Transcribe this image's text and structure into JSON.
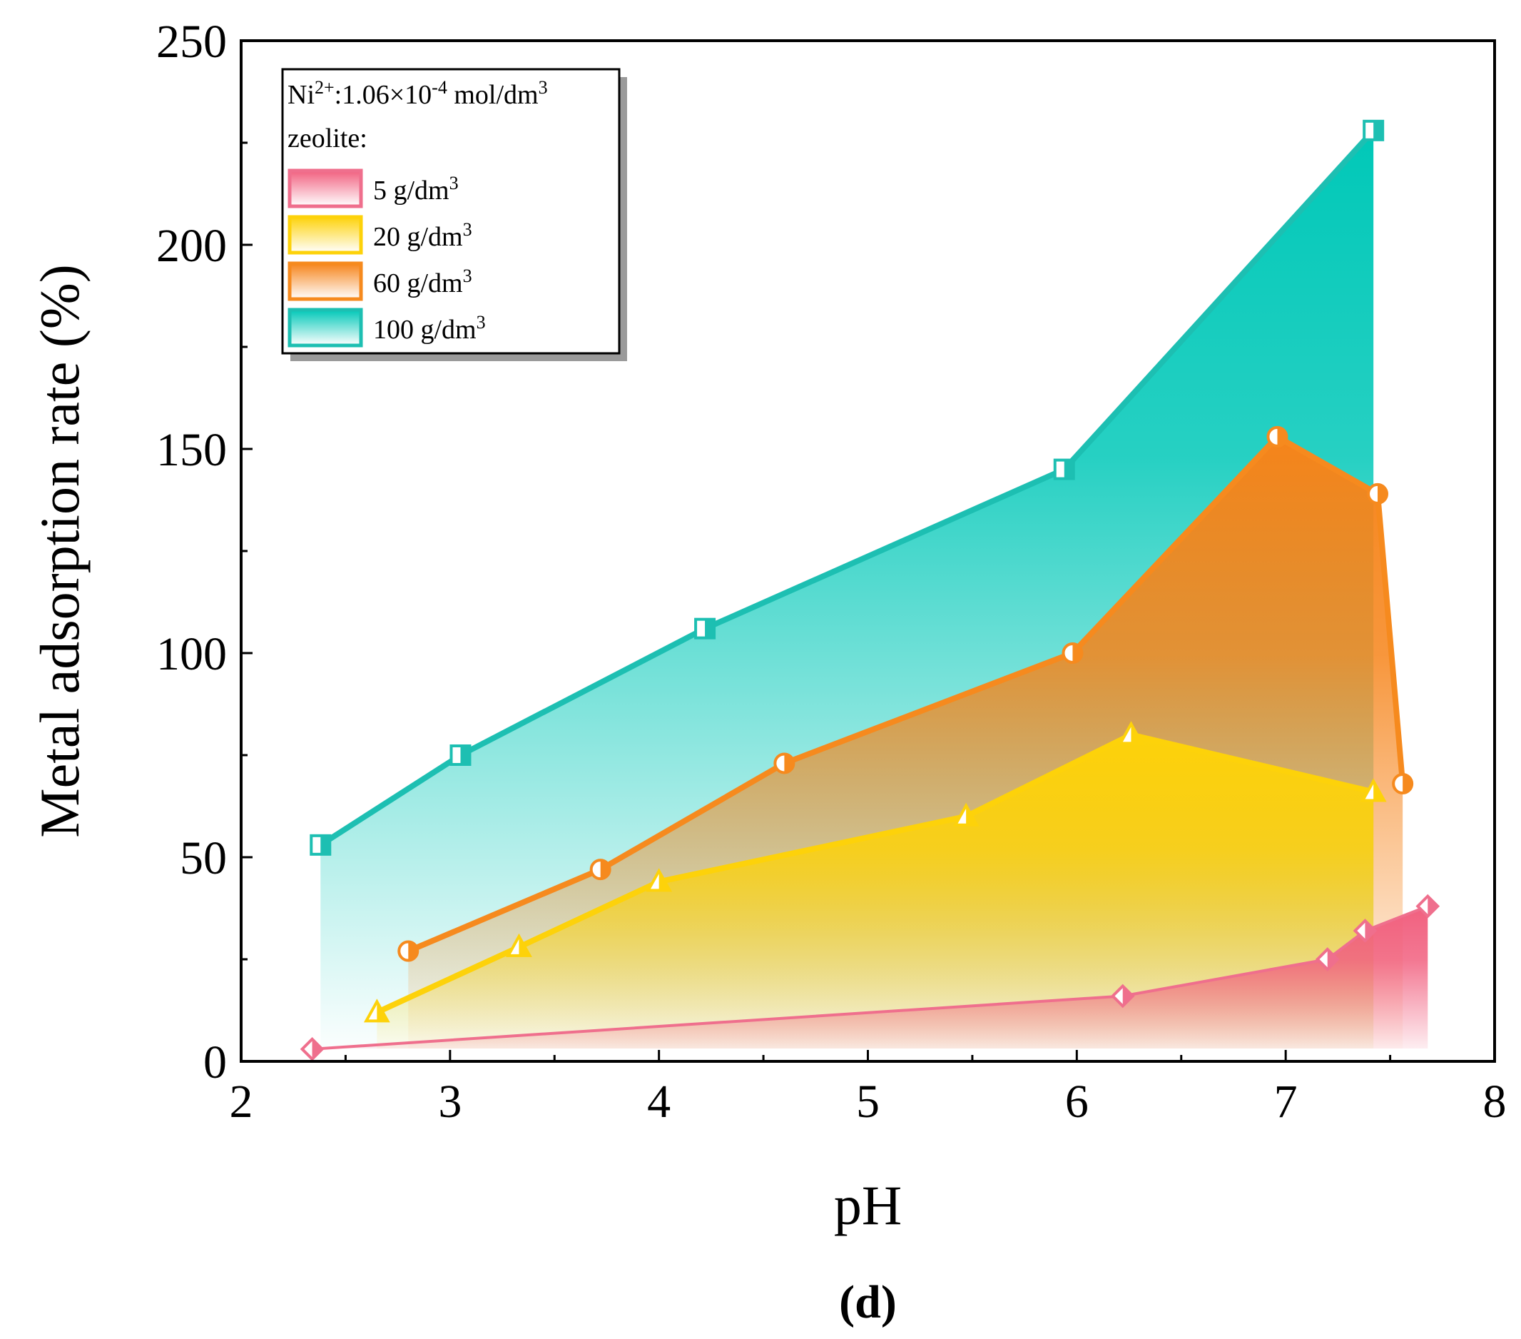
{
  "chart_data": {
    "type": "area",
    "title": "",
    "xlabel": "pH",
    "ylabel": "Metal adsorption rate (%)",
    "xlim": [
      2,
      8
    ],
    "ylim": [
      0,
      250
    ],
    "xticks": [
      2,
      3,
      4,
      5,
      6,
      7,
      8
    ],
    "yticks": [
      0,
      50,
      100,
      150,
      200,
      250
    ],
    "grid": false,
    "panel_label": "(d)",
    "legend": {
      "position": "top-left",
      "header_line1": {
        "base": "Ni",
        "sup": "2+",
        "rest": ":1.06×10",
        "exp": "-4",
        "unit": " mol/dm",
        "unit_sup": "3"
      },
      "header_line2": "zeolite:",
      "entries": [
        {
          "text": "5 g/dm",
          "sup": "3"
        },
        {
          "text": "20 g/dm",
          "sup": "3"
        },
        {
          "text": "60 g/dm",
          "sup": "3"
        },
        {
          "text": "100 g/dm",
          "sup": "3"
        }
      ]
    },
    "series": [
      {
        "name": "100 g/dm3",
        "color": "#1dbfb2",
        "fill": "#00c8b8",
        "marker": "square",
        "x": [
          2.38,
          3.05,
          4.22,
          5.94,
          7.42
        ],
        "y": [
          53,
          75,
          106,
          145,
          228
        ]
      },
      {
        "name": "60 g/dm3",
        "color": "#f68a1e",
        "fill": "#f6841a",
        "marker": "circle",
        "x": [
          2.8,
          3.72,
          4.6,
          5.98,
          6.96,
          7.44,
          7.56
        ],
        "y": [
          27,
          47,
          73,
          100,
          153,
          139,
          68
        ]
      },
      {
        "name": "20 g/dm3",
        "color": "#fdd20a",
        "fill": "#fdd20a",
        "marker": "triangle",
        "x": [
          2.65,
          3.33,
          4.0,
          5.47,
          6.26,
          7.42
        ],
        "y": [
          12,
          28,
          44,
          60,
          80,
          66
        ]
      },
      {
        "name": "5 g/dm3",
        "color": "#ef6f8d",
        "fill": "#f1607f",
        "marker": "diamond",
        "x": [
          2.34,
          6.22,
          7.2,
          7.38,
          7.68
        ],
        "y": [
          3,
          16,
          25,
          32,
          38
        ]
      }
    ]
  }
}
